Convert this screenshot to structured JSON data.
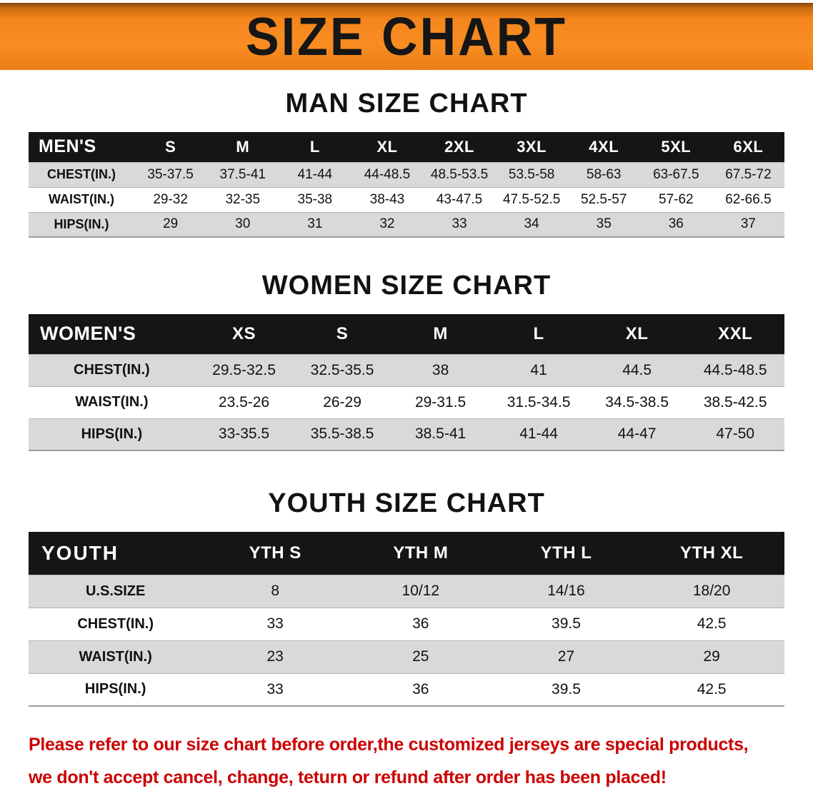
{
  "banner": {
    "title": "SIZE CHART",
    "background_color": "#f6861d",
    "title_color": "#161616"
  },
  "sections": {
    "men": {
      "heading": "MAN SIZE CHART",
      "table": {
        "header": [
          "MEN'S",
          "S",
          "M",
          "L",
          "XL",
          "2XL",
          "3XL",
          "4XL",
          "5XL",
          "6XL"
        ],
        "rows": [
          [
            "CHEST(IN.)",
            "35-37.5",
            "37.5-41",
            "41-44",
            "44-48.5",
            "48.5-53.5",
            "53.5-58",
            "58-63",
            "63-67.5",
            "67.5-72"
          ],
          [
            "WAIST(IN.)",
            "29-32",
            "32-35",
            "35-38",
            "38-43",
            "43-47.5",
            "47.5-52.5",
            "52.5-57",
            "57-62",
            "62-66.5"
          ],
          [
            "HIPS(IN.)",
            "29",
            "30",
            "31",
            "32",
            "33",
            "34",
            "35",
            "36",
            "37"
          ]
        ]
      }
    },
    "women": {
      "heading": "WOMEN SIZE CHART",
      "table": {
        "header": [
          "WOMEN'S",
          "XS",
          "S",
          "M",
          "L",
          "XL",
          "XXL"
        ],
        "rows": [
          [
            "CHEST(IN.)",
            "29.5-32.5",
            "32.5-35.5",
            "38",
            "41",
            "44.5",
            "44.5-48.5"
          ],
          [
            "WAIST(IN.)",
            "23.5-26",
            "26-29",
            "29-31.5",
            "31.5-34.5",
            "34.5-38.5",
            "38.5-42.5"
          ],
          [
            "HIPS(IN.)",
            "33-35.5",
            "35.5-38.5",
            "38.5-41",
            "41-44",
            "44-47",
            "47-50"
          ]
        ]
      }
    },
    "youth": {
      "heading": "YOUTH SIZE CHART",
      "table": {
        "header": [
          "YOUTH",
          "YTH S",
          "YTH M",
          "YTH L",
          "YTH XL"
        ],
        "rows": [
          [
            "U.S.SIZE",
            "8",
            "10/12",
            "14/16",
            "18/20"
          ],
          [
            "CHEST(IN.)",
            "33",
            "36",
            "39.5",
            "42.5"
          ],
          [
            "WAIST(IN.)",
            "23",
            "25",
            "27",
            "29"
          ],
          [
            "HIPS(IN.)",
            "33",
            "36",
            "39.5",
            "42.5"
          ]
        ]
      }
    }
  },
  "note": {
    "color": "#cc0000",
    "lines": [
      "Please refer to our size chart before order,the customized jerseys are special products,",
      "we don't accept cancel, change, teturn or refund after order has been placed!"
    ]
  },
  "table_colors": {
    "header_background": "#151515",
    "header_text": "#ffffff",
    "striped_row": "#d9d9d9"
  }
}
